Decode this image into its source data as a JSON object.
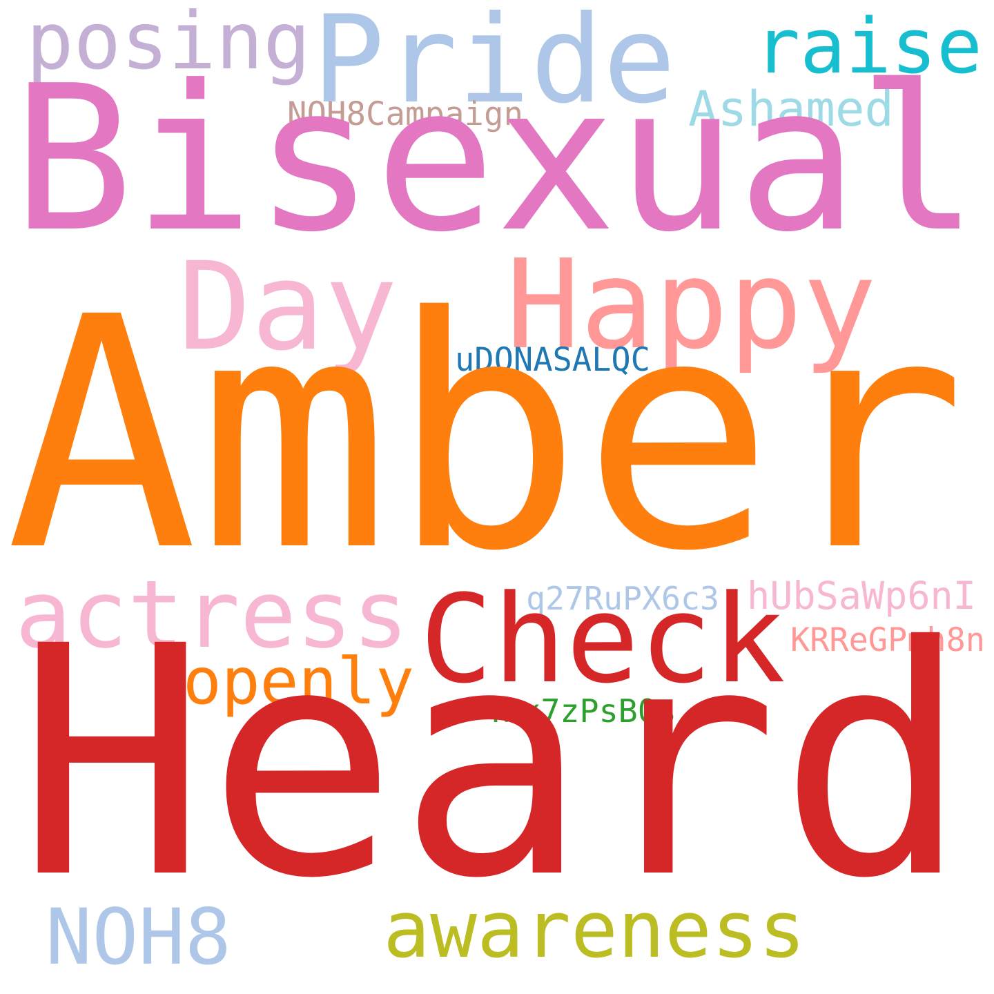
{
  "words": [
    {
      "key": "pride",
      "text": "Pride",
      "color": "#aec7e8"
    },
    {
      "key": "posing",
      "text": "posing",
      "color": "#c5b0d5"
    },
    {
      "key": "raise",
      "text": "raise",
      "color": "#17becf"
    },
    {
      "key": "noh8campaign",
      "text": "NOH8Campaign",
      "color": "#c49c94"
    },
    {
      "key": "ashamed",
      "text": "Ashamed",
      "color": "#9edae5"
    },
    {
      "key": "bisexual",
      "text": "Bisexual",
      "color": "#e377c2"
    },
    {
      "key": "day",
      "text": "Day",
      "color": "#f7b6d2"
    },
    {
      "key": "happy",
      "text": "Happy",
      "color": "#ff9896"
    },
    {
      "key": "udqnasalqc",
      "text": "uDQNASALQC",
      "color": "#1f77b4"
    },
    {
      "key": "amber",
      "text": "Amber",
      "color": "#ff7f0e"
    },
    {
      "key": "actress",
      "text": "actress",
      "color": "#f7b6d2"
    },
    {
      "key": "q27rupx6c3",
      "text": "q27RuPX6c3",
      "color": "#aec7e8"
    },
    {
      "key": "hubsawp6ni",
      "text": "hUbSaWp6nI",
      "color": "#f7b6d2"
    },
    {
      "key": "check",
      "text": "Check",
      "color": "#d62728"
    },
    {
      "key": "krregpmh8n",
      "text": "KRReGPmh8n",
      "color": "#ff9896"
    },
    {
      "key": "openly",
      "text": "openly",
      "color": "#ff7f0e"
    },
    {
      "key": "4bx7zpsb0s",
      "text": "4bx7zPsB0s",
      "color": "#2ca02c"
    },
    {
      "key": "heard",
      "text": "Heard",
      "color": "#d62728"
    },
    {
      "key": "noh8",
      "text": "NOH8",
      "color": "#aec7e8"
    },
    {
      "key": "awareness",
      "text": "awareness",
      "color": "#bcbd22"
    }
  ]
}
